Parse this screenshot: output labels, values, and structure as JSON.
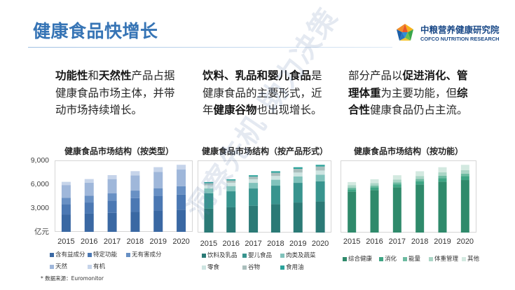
{
  "slide": {
    "title": "健康食品快增长",
    "colors": {
      "title": "#3674b5",
      "body_text": "#262626",
      "title_rule": "#9fc0e3"
    },
    "logo": {
      "icon": "cofco-gem-logo-icon",
      "name_cn": "中粮营养健康研究院",
      "name_en": "COFCO NUTRITION RESEARCH"
    },
    "watermark": "洞察先机 助力决策"
  },
  "insights": [
    {
      "lines": [
        [
          {
            "text": "功能性",
            "bold": true
          },
          {
            "text": "和"
          },
          {
            "text": "天然性",
            "bold": true
          },
          {
            "text": "产品占据"
          }
        ],
        [
          {
            "text": "健康食品市场主体，并带"
          }
        ],
        [
          {
            "text": "动市场持续增长。"
          }
        ]
      ]
    },
    {
      "lines": [
        [
          {
            "text": "饮料、乳品和婴儿食品",
            "bold": true
          },
          {
            "text": "是"
          }
        ],
        [
          {
            "text": "健康食品的主要形式，近"
          }
        ],
        [
          {
            "text": "年"
          },
          {
            "text": "健康谷物",
            "bold": true
          },
          {
            "text": "也出现增长。"
          }
        ]
      ]
    },
    {
      "lines": [
        [
          {
            "text": "部分产品以"
          },
          {
            "text": "促进消化、管",
            "bold": true
          }
        ],
        [
          {
            "text": "理体重",
            "bold": true
          },
          {
            "text": "为主要功能，但"
          },
          {
            "text": "综",
            "bold": true
          }
        ],
        [
          {
            "text": "合性",
            "bold": true
          },
          {
            "text": "健康食品仍占主流。"
          }
        ]
      ]
    }
  ],
  "chart_data": [
    {
      "type": "bar",
      "stacked": true,
      "title": "健康食品市场结构（按类型）",
      "categories": [
        "2015",
        "2016",
        "2017",
        "2018",
        "2019",
        "2020"
      ],
      "y_unit": "亿元",
      "ylim": [
        0,
        9000
      ],
      "yticks": [
        {
          "value": 9000,
          "label": "9,000"
        },
        {
          "value": 6000,
          "label": "6,000"
        },
        {
          "value": 3000,
          "label": "3,000"
        }
      ],
      "grid": false,
      "legend": "bottom",
      "series": [
        {
          "name": "含有益成分",
          "color": "#3a68a3",
          "values": [
            2200,
            2300,
            2400,
            2550,
            2700,
            2800
          ]
        },
        {
          "name": "特定功能",
          "color": "#4b78b3",
          "values": [
            1300,
            1400,
            1550,
            1700,
            1800,
            1900
          ]
        },
        {
          "name": "无有害成分",
          "color": "#6890c4",
          "values": [
            800,
            850,
            900,
            950,
            1000,
            1050
          ]
        },
        {
          "name": "天然",
          "color": "#9fb7da",
          "values": [
            1600,
            1650,
            1800,
            1900,
            2050,
            2100
          ]
        },
        {
          "name": "有机",
          "color": "#c6d4ea",
          "values": [
            400,
            450,
            500,
            550,
            600,
            600
          ]
        }
      ]
    },
    {
      "type": "bar",
      "stacked": true,
      "title": "健康食品市场结构（按产品形式）",
      "categories": [
        "2015",
        "2016",
        "2017",
        "2018",
        "2019",
        "2020"
      ],
      "ylim": [
        0,
        9000
      ],
      "grid": false,
      "legend": "bottom",
      "series": [
        {
          "name": "饮料及乳品",
          "color": "#2b7a76",
          "values": [
            3000,
            3150,
            3350,
            3550,
            3750,
            3880
          ]
        },
        {
          "name": "婴儿食品",
          "color": "#38948e",
          "values": [
            1900,
            2000,
            2150,
            2300,
            2450,
            2520
          ]
        },
        {
          "name": "肉类及蔬菜",
          "color": "#80c2bb",
          "values": [
            600,
            650,
            700,
            740,
            790,
            820
          ]
        },
        {
          "name": "零食",
          "color": "#cde4e1",
          "values": [
            400,
            420,
            450,
            470,
            500,
            520
          ]
        },
        {
          "name": "谷物",
          "color": "#a9bebc",
          "values": [
            250,
            280,
            330,
            400,
            460,
            500
          ]
        },
        {
          "name": "食用油",
          "color": "#2ba39b",
          "values": [
            150,
            150,
            170,
            190,
            200,
            210
          ]
        }
      ]
    },
    {
      "type": "bar",
      "stacked": true,
      "title": "健康食品市场结构（按功能）",
      "categories": [
        "2015",
        "2016",
        "2017",
        "2018",
        "2019",
        "2020"
      ],
      "ylim": [
        0,
        9000
      ],
      "grid": false,
      "legend": "bottom",
      "series": [
        {
          "name": "综合健康",
          "color": "#2f8a6b",
          "values": [
            5100,
            5300,
            5650,
            6000,
            6350,
            6550
          ]
        },
        {
          "name": "消化",
          "color": "#3fa584",
          "values": [
            300,
            330,
            370,
            410,
            450,
            480
          ]
        },
        {
          "name": "能量",
          "color": "#6dbba1",
          "values": [
            200,
            220,
            250,
            270,
            300,
            320
          ]
        },
        {
          "name": "体重管理",
          "color": "#a9d5c5",
          "values": [
            300,
            320,
            350,
            380,
            410,
            430
          ]
        },
        {
          "name": "其他",
          "color": "#d3e9e0",
          "values": [
            400,
            480,
            530,
            590,
            640,
            670
          ]
        }
      ]
    }
  ],
  "source_note": "* 数据来源：Euromonitor"
}
